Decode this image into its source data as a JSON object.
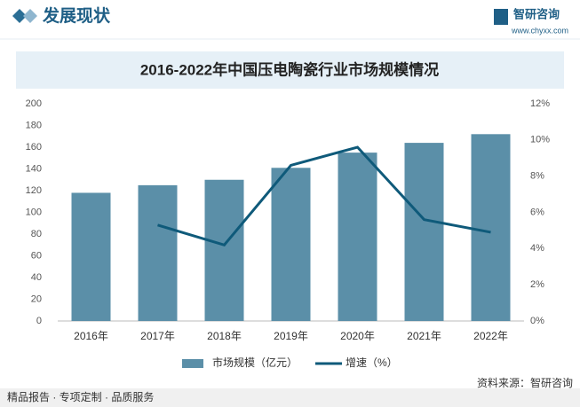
{
  "header": {
    "title": "发展现状",
    "brand": "智研咨询",
    "url": "www.chyxx.com"
  },
  "chart_data": {
    "type": "bar-line",
    "title": "2016-2022年中国压电陶瓷行业市场规模情况",
    "categories": [
      "2016年",
      "2017年",
      "2018年",
      "2019年",
      "2020年",
      "2021年",
      "2022年"
    ],
    "series": [
      {
        "name": "市场规模（亿元）",
        "color": "#5b8fa8",
        "type": "bar",
        "values": [
          118,
          125,
          130,
          141,
          155,
          164,
          172
        ]
      },
      {
        "name": "增速（%）",
        "color": "#0f5a7a",
        "type": "line",
        "axis": "y2",
        "values": [
          null,
          5.3,
          4.2,
          8.6,
          9.6,
          5.6,
          4.9
        ]
      }
    ],
    "ylim": [
      0,
      200
    ],
    "yticks": [
      0,
      20,
      40,
      60,
      80,
      100,
      120,
      140,
      160,
      180,
      200
    ],
    "y2lim": [
      0,
      12
    ],
    "y2ticks": [
      {
        "value": 0,
        "label": "0%"
      },
      {
        "value": 2,
        "label": "2%"
      },
      {
        "value": 4,
        "label": "4%"
      },
      {
        "value": 6,
        "label": "6%"
      },
      {
        "value": 8,
        "label": "8%"
      },
      {
        "value": 10,
        "label": "10%"
      },
      {
        "value": 12,
        "label": "12%"
      }
    ]
  },
  "footer": {
    "left": "精品报告 · 专项定制 · 品质服务",
    "source": "资料来源：智研咨询"
  }
}
